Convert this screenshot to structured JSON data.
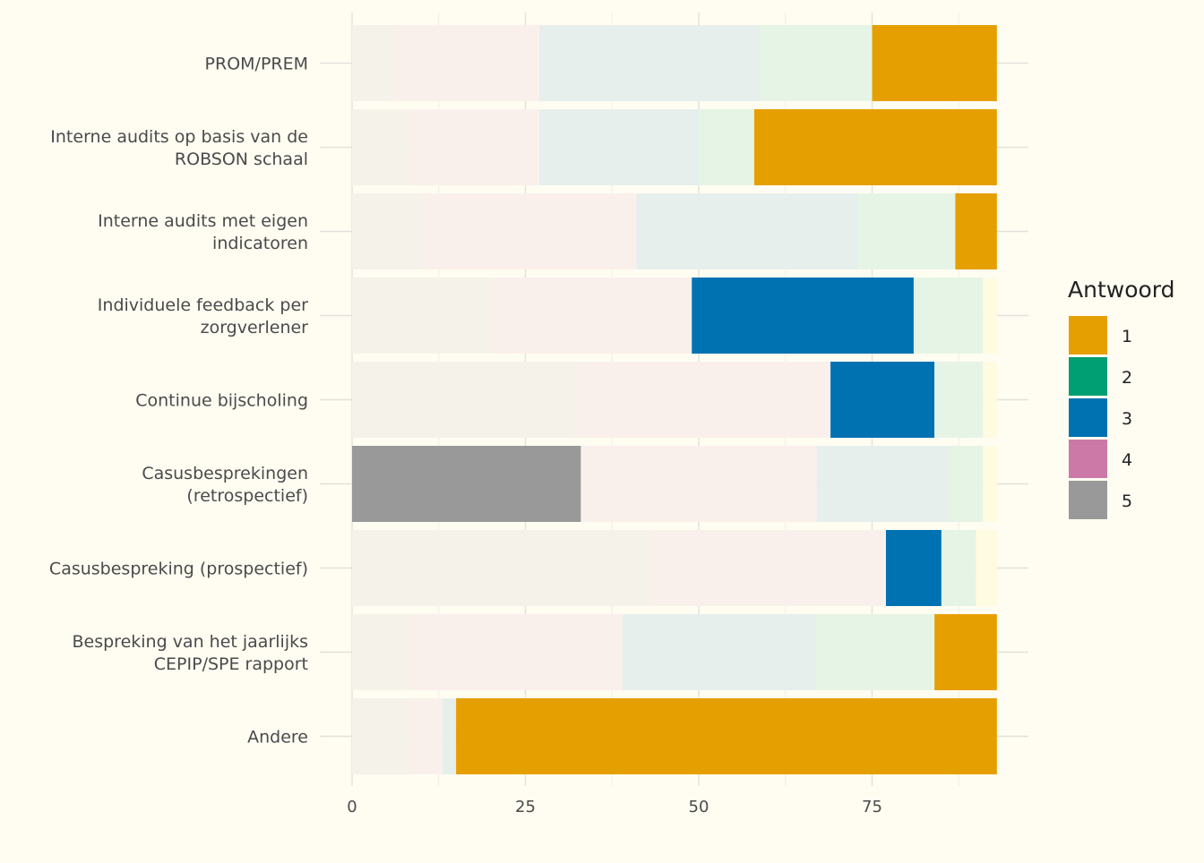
{
  "chart_data": {
    "type": "bar",
    "orientation": "horizontal",
    "stacked": true,
    "xlim": [
      0,
      93
    ],
    "x_ticks": [
      0,
      25,
      50,
      75
    ],
    "grid": true,
    "legend": {
      "title": "Antwoord",
      "position": "right",
      "entries": [
        "1",
        "2",
        "3",
        "4",
        "5"
      ]
    },
    "colors": {
      "1": "#E69F00",
      "2": "#009E73",
      "3": "#0072B2",
      "4": "#CC79A7",
      "5": "#999999",
      "6": "#F0E442"
    },
    "categories": [
      "PROM/PREM",
      "Interne audits op basis van de ROBSON schaal",
      "Interne audits met eigen indicatoren",
      "Individuele feedback per zorgverlener",
      "Continue bijscholing",
      "Casusbesprekingen (retrospectief)",
      "Casusbespreking (prospectief)",
      "Bespreking van het jaarlijks CEPIP/SPE rapport",
      "Andere"
    ],
    "category_lines": [
      [
        "PROM/PREM"
      ],
      [
        "Interne audits op basis van de",
        "ROBSON schaal"
      ],
      [
        "Interne audits met eigen",
        "indicatoren"
      ],
      [
        "Individuele feedback per",
        "zorgverlener"
      ],
      [
        "Continue bijscholing"
      ],
      [
        "Casusbesprekingen",
        "(retrospectief)"
      ],
      [
        "Casusbespreking (prospectief)"
      ],
      [
        "Bespreking van het jaarlijks",
        "CEPIP/SPE rapport"
      ],
      [
        "Andere"
      ]
    ],
    "highlight": [
      "1",
      "1",
      "1",
      "3",
      "3",
      "5",
      "3",
      "1",
      "1"
    ],
    "series": [
      {
        "name": "5",
        "values": [
          6,
          8,
          10,
          20,
          32,
          33,
          43,
          8,
          8
        ]
      },
      {
        "name": "4",
        "values": [
          21,
          19,
          31,
          29,
          37,
          34,
          34,
          31,
          5
        ]
      },
      {
        "name": "3",
        "values": [
          32,
          23,
          32,
          32,
          15,
          19,
          8,
          28,
          2
        ]
      },
      {
        "name": "2",
        "values": [
          16,
          8,
          14,
          10,
          7,
          5,
          5,
          17,
          0
        ]
      },
      {
        "name": "1",
        "values": [
          18,
          35,
          6,
          0,
          0,
          0,
          0,
          9,
          78
        ]
      },
      {
        "name": "",
        "values": [
          0,
          0,
          0,
          2,
          2,
          2,
          3,
          0,
          0
        ]
      }
    ]
  }
}
